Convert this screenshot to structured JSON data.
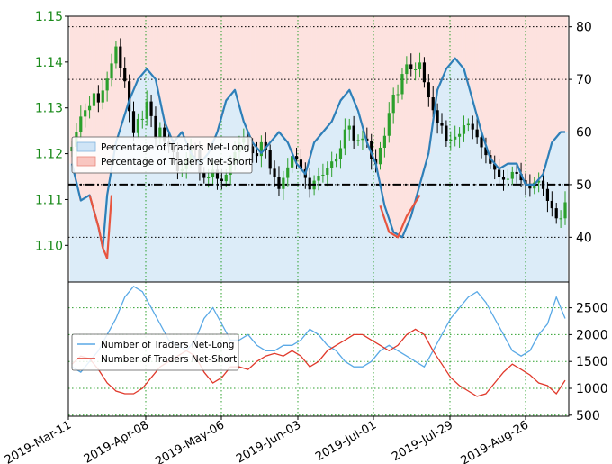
{
  "colors": {
    "candle_up": "#2ca02c",
    "candle_down": "#000000",
    "pct_long_line": "#2e7fb8",
    "pct_short_line": "#e8553f",
    "long_fill": "#dcecf8",
    "short_fill": "#fde2df",
    "count_long_line": "#5aa9e6",
    "count_short_line": "#e0392b",
    "left_tick_color": "#1a8a1a",
    "grid": "#2ca02c"
  },
  "chart_data": [
    {
      "type": "line",
      "panel": "price-and-sentiment",
      "title": "",
      "left_axis": {
        "label": "",
        "ylim": [
          1.092,
          1.15
        ],
        "ticks": [
          "1.10",
          "1.11",
          "1.12",
          "1.13",
          "1.14",
          "1.15"
        ]
      },
      "right_axis": {
        "label": "",
        "ylim": [
          31.5,
          82
        ],
        "ticks": [
          "40",
          "50",
          "60",
          "70",
          "80"
        ]
      },
      "threshold": 50,
      "grid": true,
      "legend": {
        "placement": "upper-left",
        "entries": [
          "Percentage of Traders Net-Long",
          "Percentage of Traders Net-Short"
        ]
      },
      "candles": {
        "close": [
          1.1215,
          1.1248,
          1.1281,
          1.1295,
          1.1304,
          1.1332,
          1.1312,
          1.1338,
          1.1364,
          1.1397,
          1.1434,
          1.1387,
          1.1358,
          1.1293,
          1.1245,
          1.1276,
          1.1276,
          1.1314,
          1.1282,
          1.1233,
          1.1257,
          1.1226,
          1.1216,
          1.1203,
          1.1162,
          1.1166,
          1.1185,
          1.1209,
          1.1207,
          1.1159,
          1.1147,
          1.1148,
          1.1165,
          1.1145,
          1.114,
          1.1154,
          1.1178,
          1.1203,
          1.1224,
          1.1234,
          1.1216,
          1.1201,
          1.1195,
          1.1225,
          1.1208,
          1.1167,
          1.1149,
          1.1123,
          1.1147,
          1.117,
          1.1195,
          1.1187,
          1.1166,
          1.1147,
          1.1122,
          1.1141,
          1.1152,
          1.1154,
          1.1168,
          1.1183,
          1.1188,
          1.1212,
          1.1253,
          1.1261,
          1.1229,
          1.123,
          1.1233,
          1.1228,
          1.1189,
          1.1177,
          1.1213,
          1.1239,
          1.1289,
          1.1329,
          1.133,
          1.1374,
          1.1395,
          1.1384,
          1.1384,
          1.1399,
          1.1356,
          1.1323,
          1.1295,
          1.1268,
          1.1261,
          1.1227,
          1.1231,
          1.1237,
          1.1243,
          1.1262,
          1.1265,
          1.1253,
          1.1236,
          1.1214,
          1.1197,
          1.1178,
          1.1165,
          1.1149,
          1.1143,
          1.1145,
          1.116,
          1.1156,
          1.1142,
          1.1134,
          1.1124,
          1.1137,
          1.1141,
          1.1123,
          1.1097,
          1.1081,
          1.1059,
          1.1059,
          1.1094
        ],
        "count": 113,
        "note_days": "daily sessions from 2019-Mar-11"
      },
      "pct_long": {
        "name": "Percentage of Traders Net-Long",
        "points": [
          [
            0,
            54
          ],
          [
            2,
            47
          ],
          [
            4,
            48
          ],
          [
            6,
            42
          ],
          [
            7,
            38
          ],
          [
            8,
            48
          ],
          [
            10,
            58
          ],
          [
            13,
            66
          ],
          [
            15,
            70
          ],
          [
            17,
            72
          ],
          [
            19,
            70
          ],
          [
            21,
            62
          ],
          [
            23,
            58
          ],
          [
            25,
            60
          ],
          [
            27,
            56
          ],
          [
            29,
            54
          ],
          [
            31,
            56
          ],
          [
            33,
            60
          ],
          [
            35,
            66
          ],
          [
            37,
            68
          ],
          [
            39,
            62
          ],
          [
            41,
            58
          ],
          [
            43,
            56
          ],
          [
            45,
            58
          ],
          [
            47,
            60
          ],
          [
            49,
            58
          ],
          [
            51,
            54
          ],
          [
            53,
            52
          ],
          [
            55,
            58
          ],
          [
            57,
            60
          ],
          [
            59,
            62
          ],
          [
            61,
            66
          ],
          [
            63,
            68
          ],
          [
            65,
            64
          ],
          [
            67,
            58
          ],
          [
            69,
            54
          ],
          [
            71,
            46
          ],
          [
            73,
            41
          ],
          [
            75,
            40
          ],
          [
            77,
            44
          ],
          [
            79,
            50
          ],
          [
            81,
            56
          ],
          [
            83,
            68
          ],
          [
            85,
            72
          ],
          [
            87,
            74
          ],
          [
            89,
            72
          ],
          [
            91,
            66
          ],
          [
            93,
            60
          ],
          [
            95,
            55
          ],
          [
            97,
            53
          ],
          [
            99,
            54
          ],
          [
            101,
            54
          ],
          [
            103,
            50
          ],
          [
            105,
            50
          ],
          [
            107,
            52
          ],
          [
            109,
            58
          ],
          [
            111,
            60
          ],
          [
            112,
            60
          ]
        ]
      },
      "pct_short": {
        "name": "Percentage of Traders Net-Short",
        "points": [
          [
            4,
            48
          ],
          [
            6,
            42
          ],
          [
            7,
            38
          ],
          [
            8,
            36
          ],
          [
            9,
            48
          ],
          [
            70,
            46
          ],
          [
            72,
            41
          ],
          [
            74,
            40
          ],
          [
            76,
            44
          ],
          [
            79,
            48
          ]
        ]
      }
    },
    {
      "type": "line",
      "panel": "trader-counts",
      "title": "",
      "right_axis": {
        "label": "",
        "ylim": [
          480,
          2980
        ],
        "ticks": [
          "500",
          "1000",
          "1500",
          "2000",
          "2500"
        ]
      },
      "grid": true,
      "legend": {
        "placement": "upper-left",
        "entries": [
          "Number of Traders Net-Long",
          "Number of Traders Net-Short"
        ]
      },
      "x_tick_labels": [
        "2019-Mar-11",
        "2019-Apr-08",
        "2019-May-06",
        "2019-Jun-03",
        "2019-Jul-01",
        "2019-Jul-29",
        "2019-Aug-26"
      ],
      "series": [
        {
          "name": "Number of Traders Net-Long",
          "points": [
            [
              0,
              1400
            ],
            [
              2,
              1300
            ],
            [
              4,
              1500
            ],
            [
              6,
              1700
            ],
            [
              8,
              2000
            ],
            [
              10,
              2300
            ],
            [
              12,
              2700
            ],
            [
              14,
              2900
            ],
            [
              16,
              2800
            ],
            [
              18,
              2500
            ],
            [
              20,
              2200
            ],
            [
              22,
              1900
            ],
            [
              24,
              1800
            ],
            [
              26,
              1700
            ],
            [
              28,
              1900
            ],
            [
              30,
              2300
            ],
            [
              32,
              2500
            ],
            [
              34,
              2200
            ],
            [
              36,
              1900
            ],
            [
              38,
              1900
            ],
            [
              40,
              2000
            ],
            [
              42,
              1800
            ],
            [
              44,
              1700
            ],
            [
              46,
              1700
            ],
            [
              48,
              1800
            ],
            [
              50,
              1800
            ],
            [
              52,
              1900
            ],
            [
              54,
              2100
            ],
            [
              56,
              2000
            ],
            [
              58,
              1800
            ],
            [
              60,
              1700
            ],
            [
              62,
              1500
            ],
            [
              64,
              1400
            ],
            [
              66,
              1400
            ],
            [
              68,
              1500
            ],
            [
              70,
              1700
            ],
            [
              72,
              1800
            ],
            [
              74,
              1700
            ],
            [
              76,
              1600
            ],
            [
              78,
              1500
            ],
            [
              80,
              1400
            ],
            [
              82,
              1700
            ],
            [
              84,
              2000
            ],
            [
              86,
              2300
            ],
            [
              88,
              2500
            ],
            [
              90,
              2700
            ],
            [
              92,
              2800
            ],
            [
              94,
              2600
            ],
            [
              96,
              2300
            ],
            [
              98,
              2000
            ],
            [
              100,
              1700
            ],
            [
              102,
              1600
            ],
            [
              104,
              1700
            ],
            [
              106,
              2000
            ],
            [
              108,
              2200
            ],
            [
              110,
              2700
            ],
            [
              112,
              2300
            ]
          ]
        },
        {
          "name": "Number of Traders Net-Short",
          "points": [
            [
              0,
              1450
            ],
            [
              2,
              1600
            ],
            [
              4,
              1550
            ],
            [
              6,
              1350
            ],
            [
              8,
              1100
            ],
            [
              10,
              950
            ],
            [
              12,
              900
            ],
            [
              14,
              900
            ],
            [
              16,
              1000
            ],
            [
              18,
              1200
            ],
            [
              20,
              1400
            ],
            [
              22,
              1500
            ],
            [
              24,
              1600
            ],
            [
              26,
              1700
            ],
            [
              28,
              1600
            ],
            [
              30,
              1300
            ],
            [
              32,
              1100
            ],
            [
              34,
              1200
            ],
            [
              36,
              1400
            ],
            [
              38,
              1400
            ],
            [
              40,
              1350
            ],
            [
              42,
              1500
            ],
            [
              44,
              1600
            ],
            [
              46,
              1650
            ],
            [
              48,
              1600
            ],
            [
              50,
              1700
            ],
            [
              52,
              1600
            ],
            [
              54,
              1400
            ],
            [
              56,
              1500
            ],
            [
              58,
              1700
            ],
            [
              60,
              1800
            ],
            [
              62,
              1900
            ],
            [
              64,
              2000
            ],
            [
              66,
              2000
            ],
            [
              68,
              1900
            ],
            [
              70,
              1800
            ],
            [
              72,
              1700
            ],
            [
              74,
              1800
            ],
            [
              76,
              2000
            ],
            [
              78,
              2100
            ],
            [
              80,
              2000
            ],
            [
              82,
              1700
            ],
            [
              84,
              1450
            ],
            [
              86,
              1200
            ],
            [
              88,
              1050
            ],
            [
              90,
              950
            ],
            [
              92,
              850
            ],
            [
              94,
              900
            ],
            [
              96,
              1100
            ],
            [
              98,
              1300
            ],
            [
              100,
              1450
            ],
            [
              102,
              1350
            ],
            [
              104,
              1250
            ],
            [
              106,
              1100
            ],
            [
              108,
              1050
            ],
            [
              110,
              900
            ],
            [
              112,
              1150
            ]
          ]
        }
      ]
    }
  ]
}
